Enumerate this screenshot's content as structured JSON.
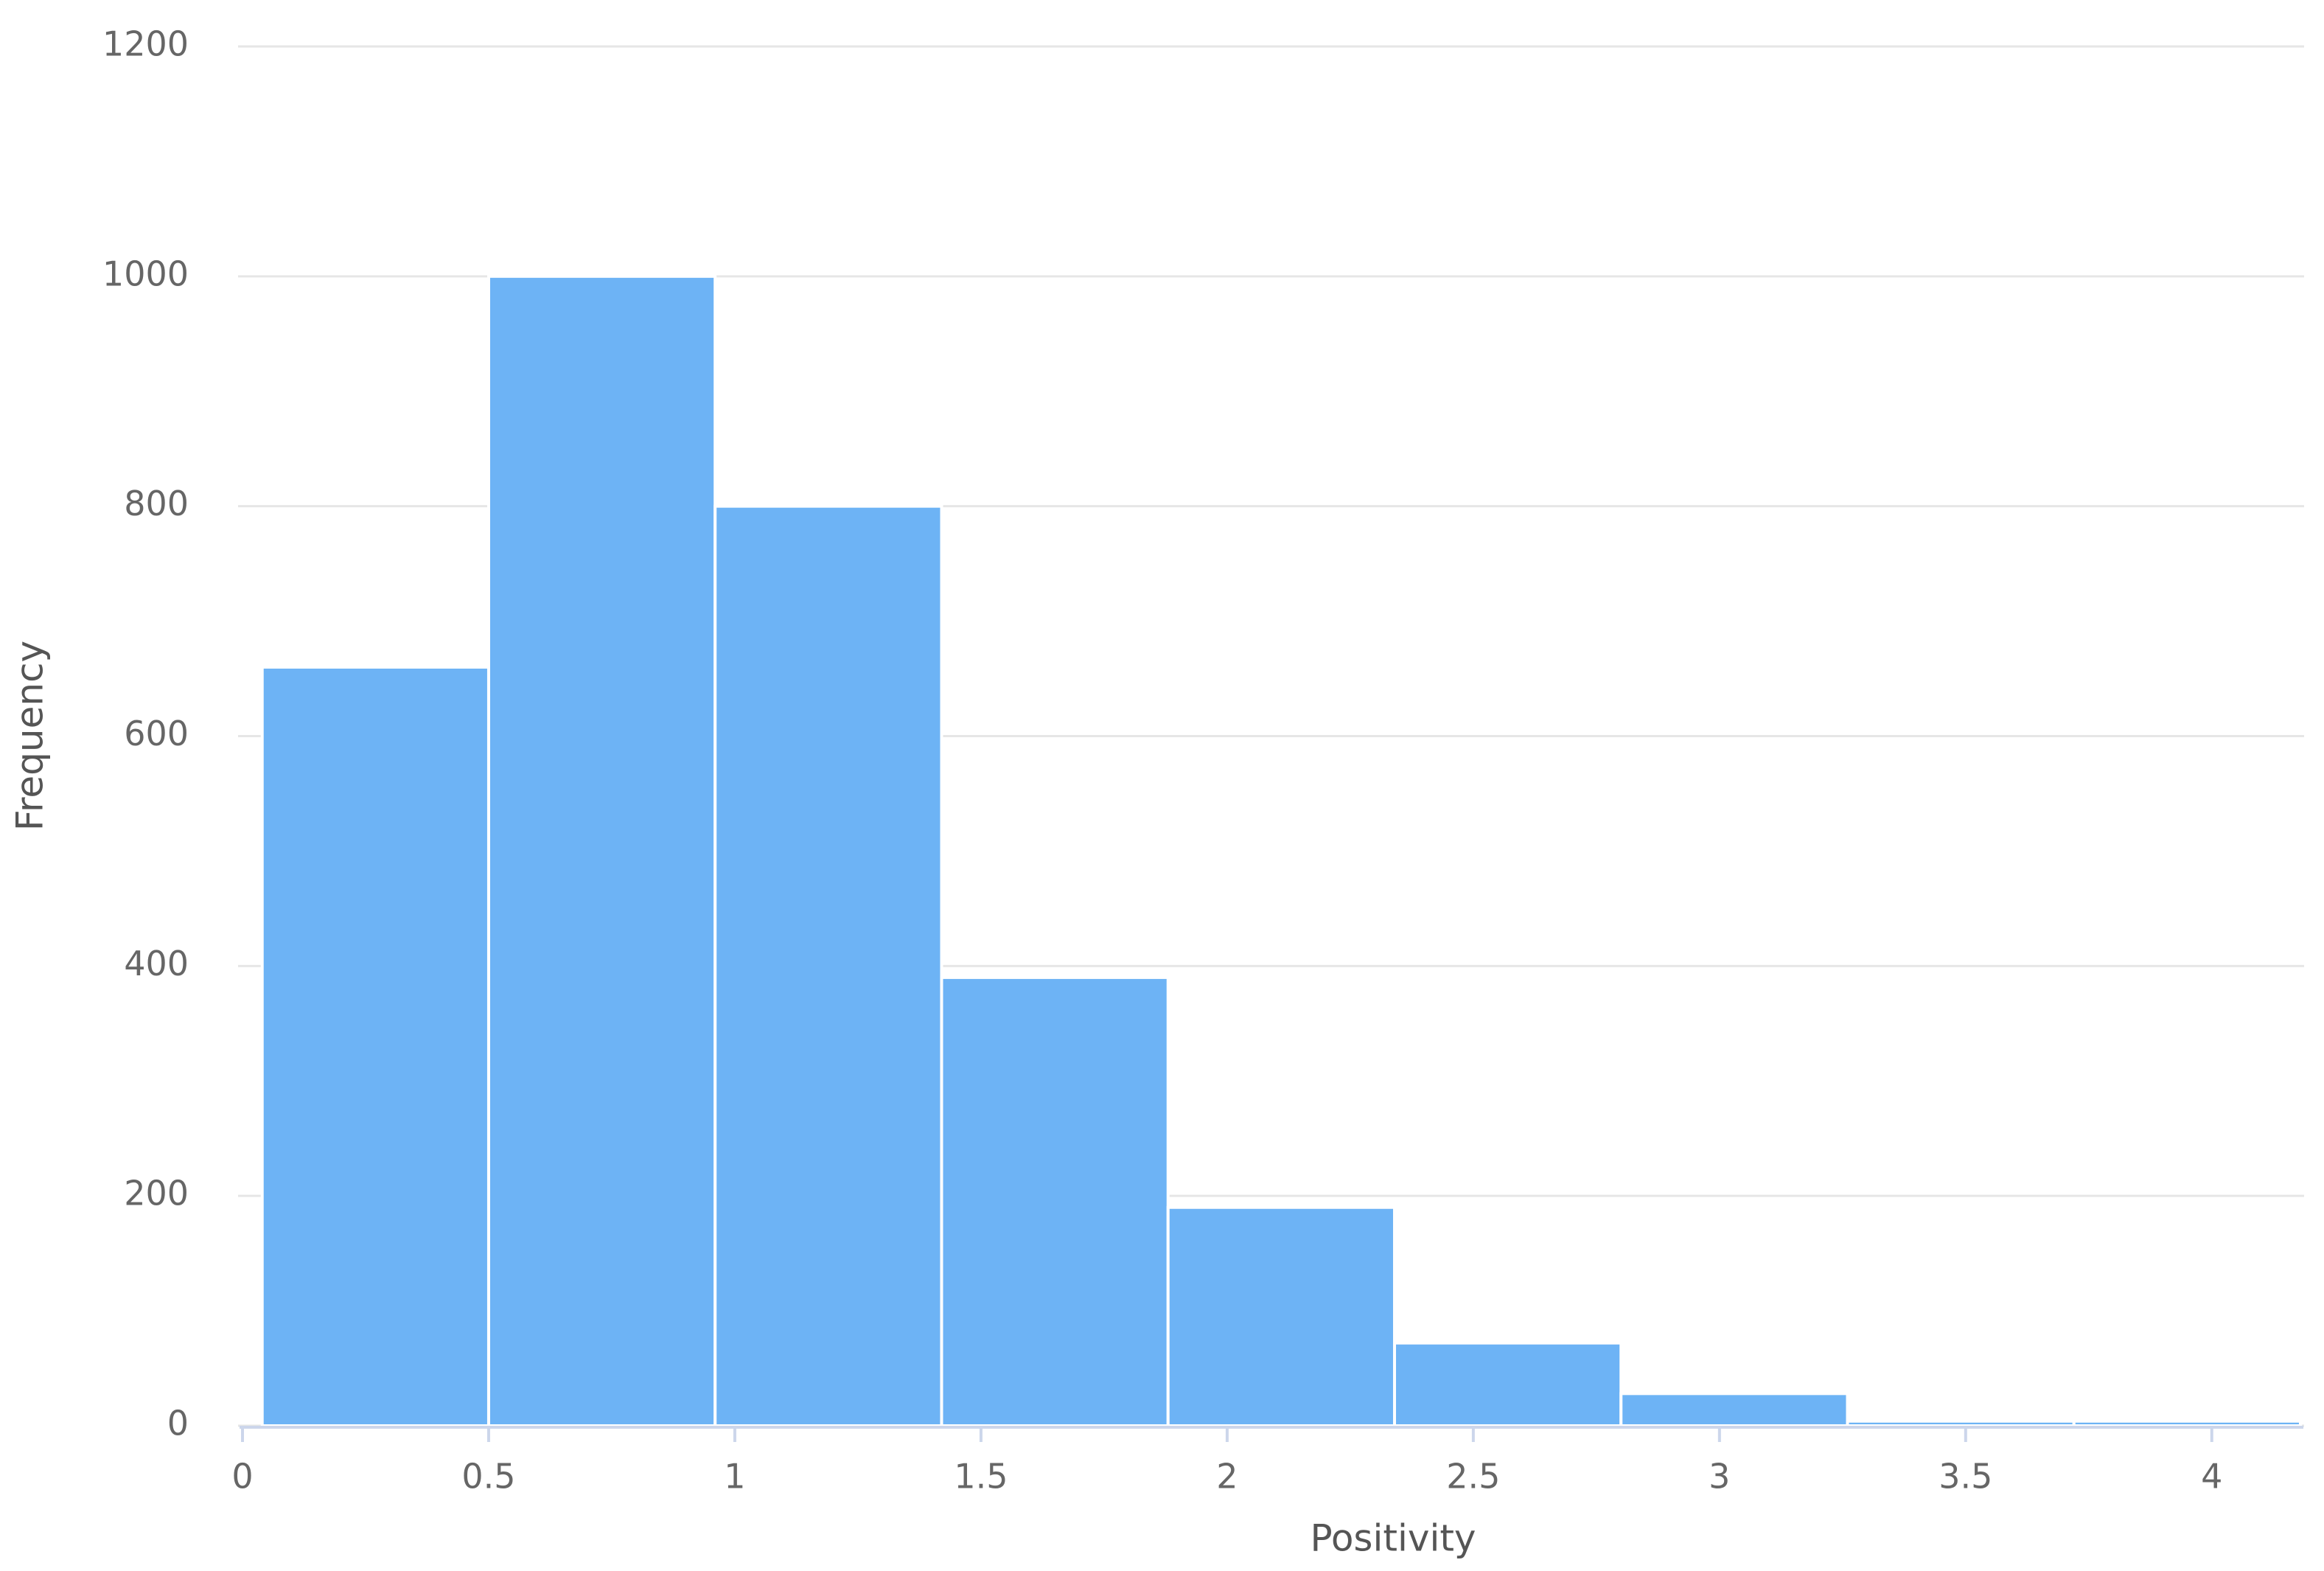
{
  "chart_data": {
    "type": "histogram",
    "x_label": "Positivity",
    "y_label": "Frequency",
    "bins": [
      0.04,
      0.5,
      0.96,
      1.42,
      1.88,
      2.34,
      2.8,
      3.26,
      3.72,
      4.18
    ],
    "values": [
      660,
      1000,
      800,
      390,
      190,
      72,
      28,
      4,
      4
    ],
    "color": "#6db3f5",
    "xlim": [
      0,
      4.18
    ],
    "xticks": [
      0,
      0.5,
      1,
      1.5,
      2,
      2.5,
      3,
      3.5,
      4
    ],
    "ylim": [
      0,
      1200
    ],
    "yticks": [
      0,
      200,
      400,
      600,
      800,
      1000,
      1200
    ],
    "grid": true
  }
}
